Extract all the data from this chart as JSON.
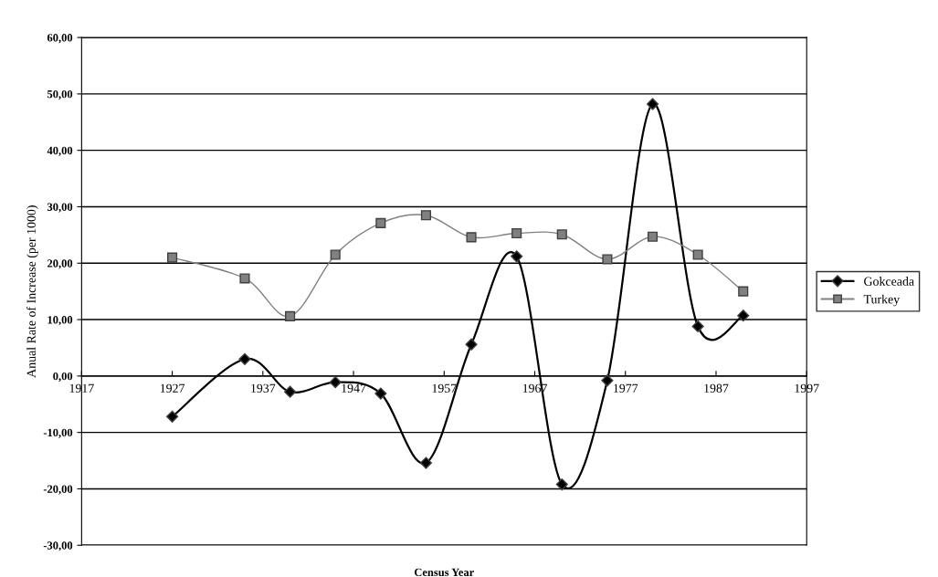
{
  "chart_data": {
    "type": "line",
    "xlabel": "Census Year",
    "ylabel": "Anual Rate of Increase (per 1000)",
    "x": [
      1927,
      1935,
      1940,
      1945,
      1950,
      1955,
      1960,
      1965,
      1970,
      1975,
      1980,
      1985,
      1990
    ],
    "series": [
      {
        "name": "Gokceada",
        "color": "#000000",
        "marker": "diamond",
        "values": [
          -7.2,
          3.0,
          -2.8,
          -1.1,
          -3.1,
          -15.4,
          5.6,
          21.2,
          -19.2,
          -0.8,
          48.2,
          8.8,
          10.7
        ]
      },
      {
        "name": "Turkey",
        "color": "#808080",
        "marker": "square",
        "values": [
          21.0,
          17.3,
          10.6,
          21.5,
          27.1,
          28.5,
          24.6,
          25.3,
          25.1,
          20.7,
          24.7,
          21.5,
          15.0
        ]
      }
    ],
    "xlim": [
      1917,
      1997
    ],
    "xticks": [
      1917,
      1927,
      1937,
      1947,
      1957,
      1967,
      1977,
      1987,
      1997
    ],
    "ylim": [
      -30,
      60
    ],
    "yticks": [
      {
        "value": -30,
        "label": "-30,00"
      },
      {
        "value": -20,
        "label": "-20,00"
      },
      {
        "value": -10,
        "label": "-10,00"
      },
      {
        "value": 0,
        "label": "0,00"
      },
      {
        "value": 10,
        "label": "10,00"
      },
      {
        "value": 20,
        "label": "20,00"
      },
      {
        "value": 30,
        "label": "30,00"
      },
      {
        "value": 40,
        "label": "40,00"
      },
      {
        "value": 50,
        "label": "50,00"
      },
      {
        "value": 60,
        "label": "60,00"
      }
    ],
    "grid": "y",
    "legend": "right",
    "line_style": "solid"
  }
}
